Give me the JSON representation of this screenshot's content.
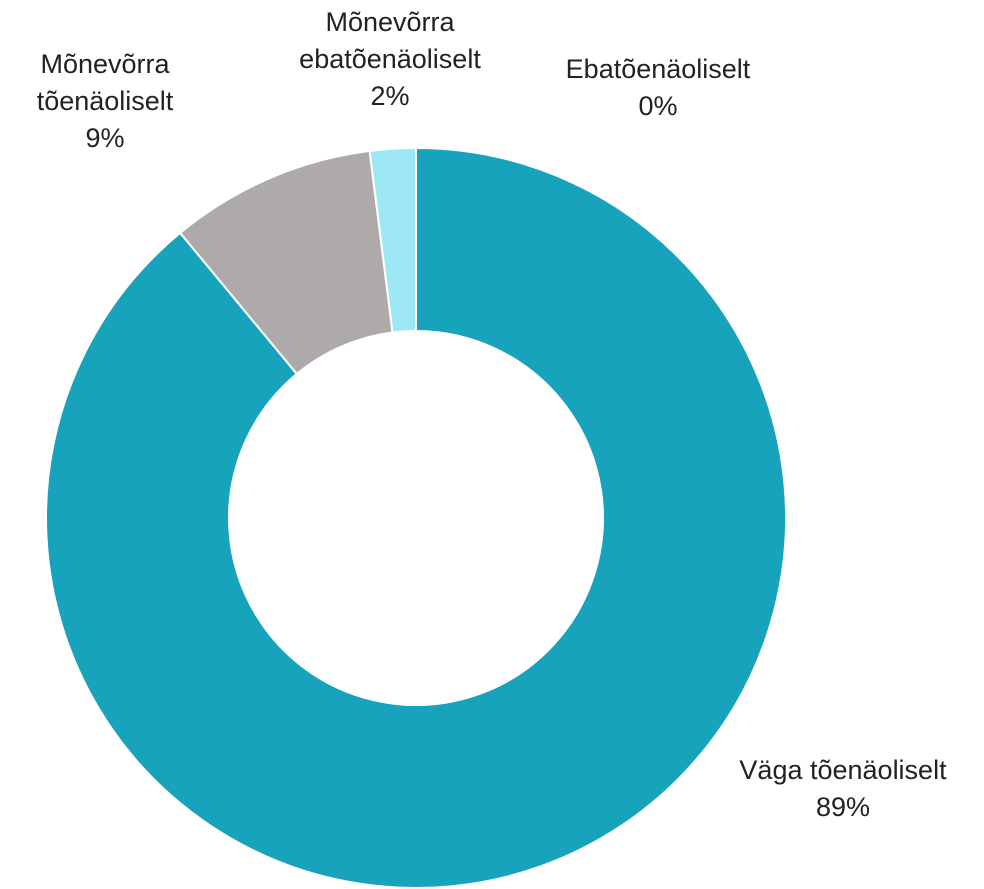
{
  "chart_data": {
    "type": "donut",
    "categories": [
      "Väga tõenäoliselt",
      "Mõnevõrra tõenäoliselt",
      "Mõnevõrra ebatõenäoliselt",
      "Ebatõenäoliselt"
    ],
    "values": [
      89,
      9,
      2,
      0
    ],
    "value_labels": [
      "89%",
      "9%",
      "2%",
      "0%"
    ],
    "colors": [
      "#17a3bb",
      "#aeaaaa",
      "#9de7f6",
      "#0e6f80"
    ]
  }
}
